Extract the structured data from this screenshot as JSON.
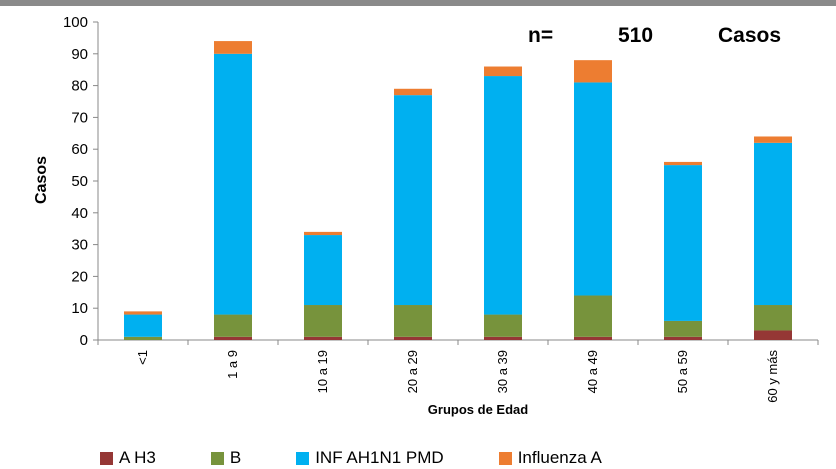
{
  "chart_data": {
    "type": "bar",
    "stacked": true,
    "title": "",
    "xlabel": "Grupos de Edad",
    "ylabel": "Casos",
    "ylim": [
      0,
      100
    ],
    "yticks": [
      0,
      10,
      20,
      30,
      40,
      50,
      60,
      70,
      80,
      90,
      100
    ],
    "categories": [
      "<1",
      "1 a 9",
      "10 a 19",
      "20 a 29",
      "30 a 39",
      "40 a 49",
      "50 a 59",
      "60 y más"
    ],
    "series": [
      {
        "name": "A H3",
        "color": "#953735",
        "values": [
          0,
          1,
          1,
          1,
          1,
          1,
          1,
          3
        ]
      },
      {
        "name": "B",
        "color": "#77933C",
        "values": [
          1,
          7,
          10,
          10,
          7,
          13,
          5,
          8
        ]
      },
      {
        "name": "INF AH1N1 PMD",
        "color": "#00B0F0",
        "values": [
          7,
          82,
          22,
          66,
          75,
          67,
          49,
          51
        ]
      },
      {
        "name": "Influenza A",
        "color": "#ED7D31",
        "values": [
          1,
          4,
          1,
          2,
          3,
          7,
          1,
          2
        ]
      }
    ],
    "annotation": {
      "n_label": "n=",
      "n_value": "510",
      "unit": "Casos"
    },
    "grid": false,
    "legend_position": "bottom"
  }
}
